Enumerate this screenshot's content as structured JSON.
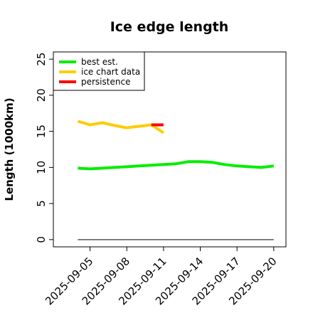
{
  "chart_data": {
    "type": "line",
    "title": "Ice edge length",
    "xlabel": "",
    "ylabel": "Length (1000km)",
    "ylim": [
      -1,
      26
    ],
    "xlim": [
      "2025-09-02",
      "2025-09-21"
    ],
    "yticks": [
      0,
      5,
      10,
      15,
      20,
      25
    ],
    "xticks": [
      "2025-09-05",
      "2025-09-08",
      "2025-09-11",
      "2025-09-14",
      "2025-09-17",
      "2025-09-20"
    ],
    "grid": false,
    "legend": {
      "placement": "top-left"
    },
    "series": [
      {
        "name": "best est.",
        "color": "#00ee00",
        "x": [
          "2025-09-04",
          "2025-09-05",
          "2025-09-06",
          "2025-09-07",
          "2025-09-08",
          "2025-09-09",
          "2025-09-10",
          "2025-09-11",
          "2025-09-12",
          "2025-09-13",
          "2025-09-14",
          "2025-09-15",
          "2025-09-16",
          "2025-09-17",
          "2025-09-18",
          "2025-09-19",
          "2025-09-20"
        ],
        "values": [
          9.9,
          9.8,
          9.9,
          10.0,
          10.1,
          10.2,
          10.3,
          10.4,
          10.5,
          10.8,
          10.8,
          10.7,
          10.4,
          10.2,
          10.1,
          10.0,
          10.2
        ]
      },
      {
        "name": "ice chart data",
        "color": "#ffcc00",
        "x": [
          "2025-09-04",
          "2025-09-05",
          "2025-09-06",
          "2025-09-07",
          "2025-09-08",
          "2025-09-09",
          "2025-09-10",
          "2025-09-11"
        ],
        "values": [
          16.4,
          15.9,
          16.2,
          15.8,
          15.5,
          15.7,
          15.9,
          14.8
        ]
      },
      {
        "name": "persistence",
        "color": "#ff0000",
        "x": [
          "2025-09-10",
          "2025-09-11"
        ],
        "values": [
          15.9,
          15.9
        ]
      }
    ],
    "reference_line": {
      "value": 0,
      "color": "#555555"
    }
  }
}
